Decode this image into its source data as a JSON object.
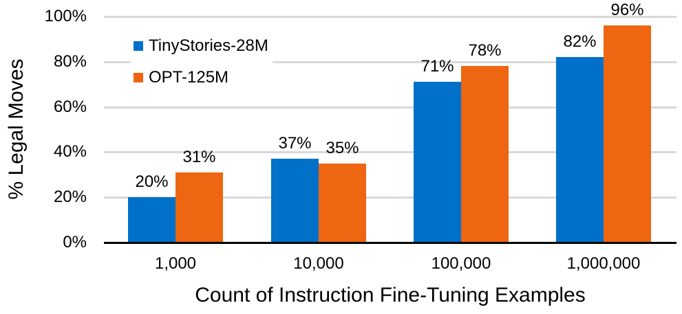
{
  "chart_data": {
    "type": "bar",
    "title": "",
    "xlabel": "Count of Instruction Fine-Tuning Examples",
    "ylabel": "% Legal Moves",
    "categories": [
      "1,000",
      "10,000",
      "100,000",
      "1,000,000"
    ],
    "series": [
      {
        "name": "TinyStories-28M",
        "color": "#0070c9",
        "values": [
          20,
          37,
          71,
          82
        ],
        "labels": [
          "20%",
          "37%",
          "71%",
          "82%"
        ]
      },
      {
        "name": "OPT-125M",
        "color": "#ee6611",
        "values": [
          31,
          35,
          78,
          96
        ],
        "labels": [
          "31%",
          "35%",
          "78%",
          "96%"
        ]
      }
    ],
    "ylim": [
      0,
      100
    ],
    "yticks": [
      "0%",
      "20%",
      "40%",
      "60%",
      "80%",
      "100%"
    ],
    "grid": true,
    "legend_position": "upper-left (inside plot)",
    "data_labels": true
  },
  "legend": {
    "items": [
      {
        "label": "TinyStories-28M",
        "color": "#0070c9"
      },
      {
        "label": "OPT-125M",
        "color": "#ee6611"
      }
    ]
  },
  "axes": {
    "x_title": "Count of Instruction Fine-Tuning Examples",
    "y_title": "% Legal Moves"
  }
}
